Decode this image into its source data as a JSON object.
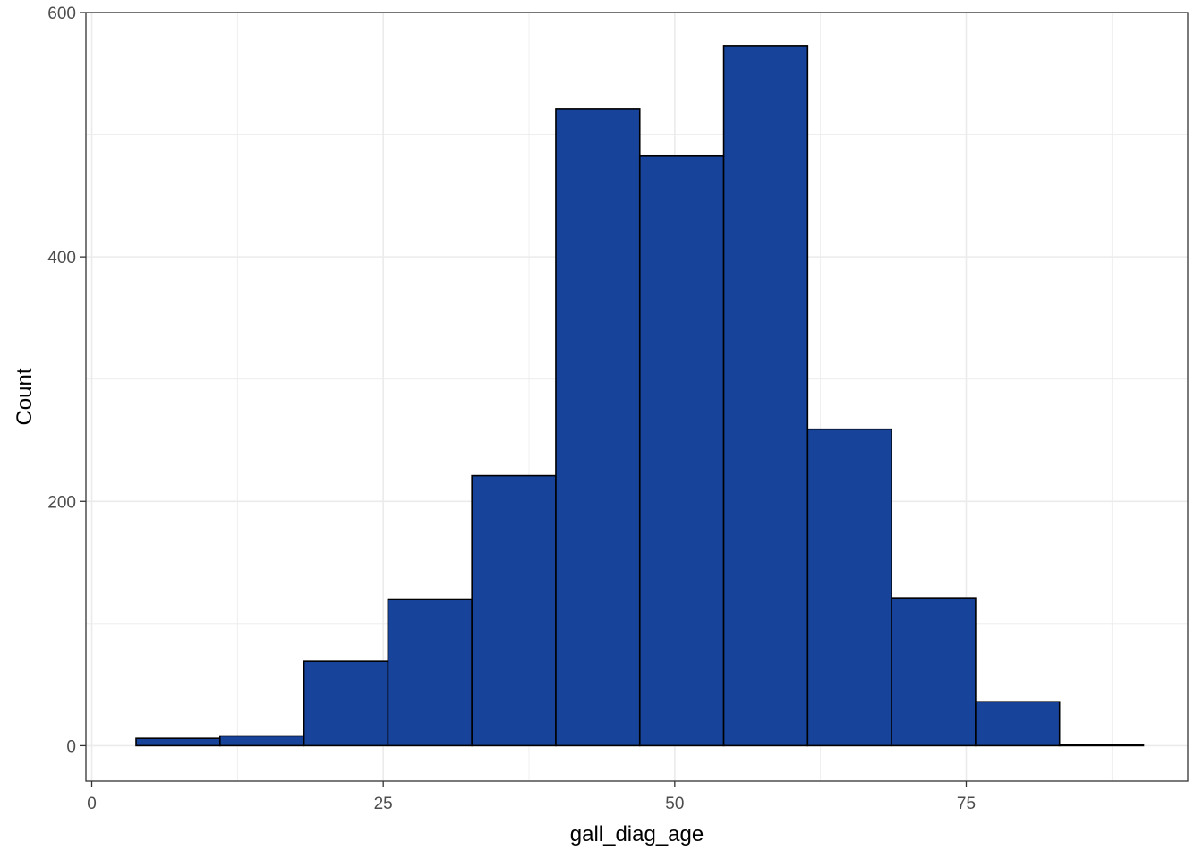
{
  "chart_data": {
    "type": "bar",
    "subtype": "histogram",
    "title": "",
    "xlabel": "gall_diag_age",
    "ylabel": "Count",
    "xlim": [
      -0.5,
      94
    ],
    "ylim": [
      -29,
      600
    ],
    "x_ticks": [
      0,
      25,
      50,
      75
    ],
    "y_ticks": [
      0,
      200,
      400,
      600
    ],
    "x_tick_labels": [
      "0",
      "25",
      "50",
      "75"
    ],
    "y_tick_labels": [
      "0",
      "200",
      "400",
      "600"
    ],
    "grid": true,
    "legend": "none",
    "bin_edges": [
      3.8,
      11.0,
      18.2,
      25.4,
      32.6,
      39.8,
      47.0,
      54.2,
      61.4,
      68.6,
      75.8,
      83.0,
      90.2
    ],
    "values": [
      6,
      8,
      69,
      120,
      221,
      521,
      483,
      573,
      259,
      121,
      36,
      1
    ],
    "colors": {
      "bar_fill": "#18439a",
      "bar_stroke": "#000000",
      "grid": "#ebebeb",
      "panel_border": "#333333"
    }
  }
}
